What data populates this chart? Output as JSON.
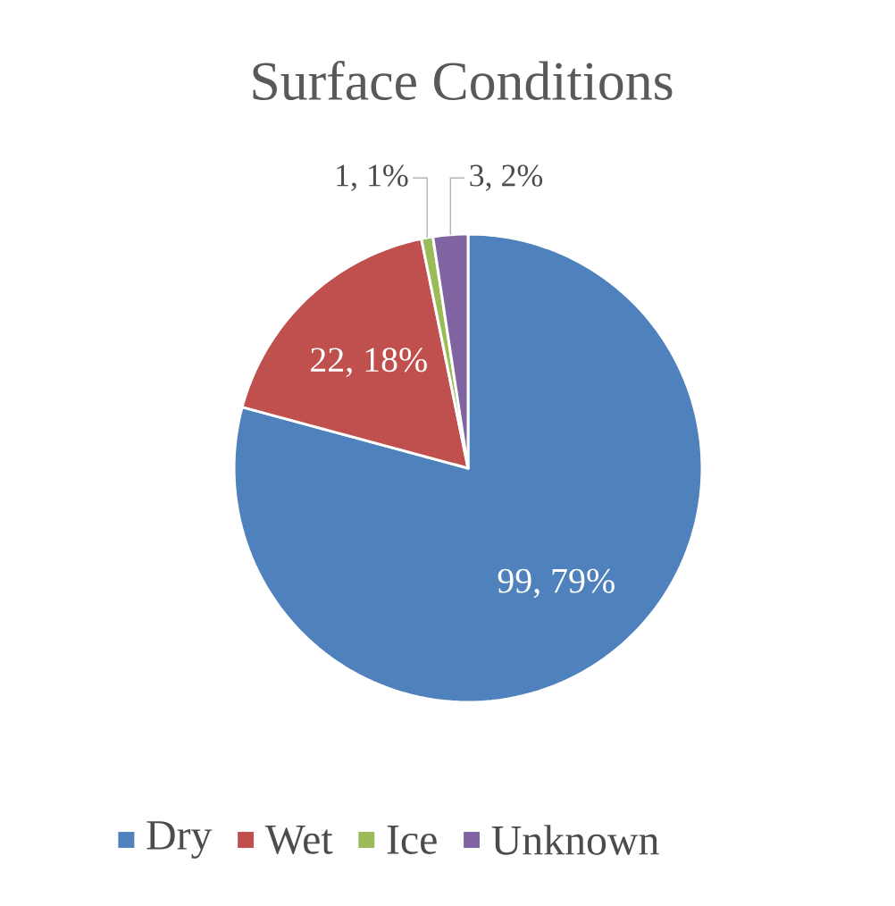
{
  "chart_data": {
    "type": "pie",
    "title": "Surface Conditions",
    "categories": [
      "Dry",
      "Wet",
      "Ice",
      "Unknown"
    ],
    "values": [
      99,
      22,
      1,
      3
    ],
    "colors": [
      "#4f81bd",
      "#c0504d",
      "#9bbb59",
      "#8064a2"
    ],
    "value_labels": [
      "99, 79%",
      "22, 18%",
      "1, 1%",
      "3, 2%"
    ],
    "legend": "bottom"
  }
}
